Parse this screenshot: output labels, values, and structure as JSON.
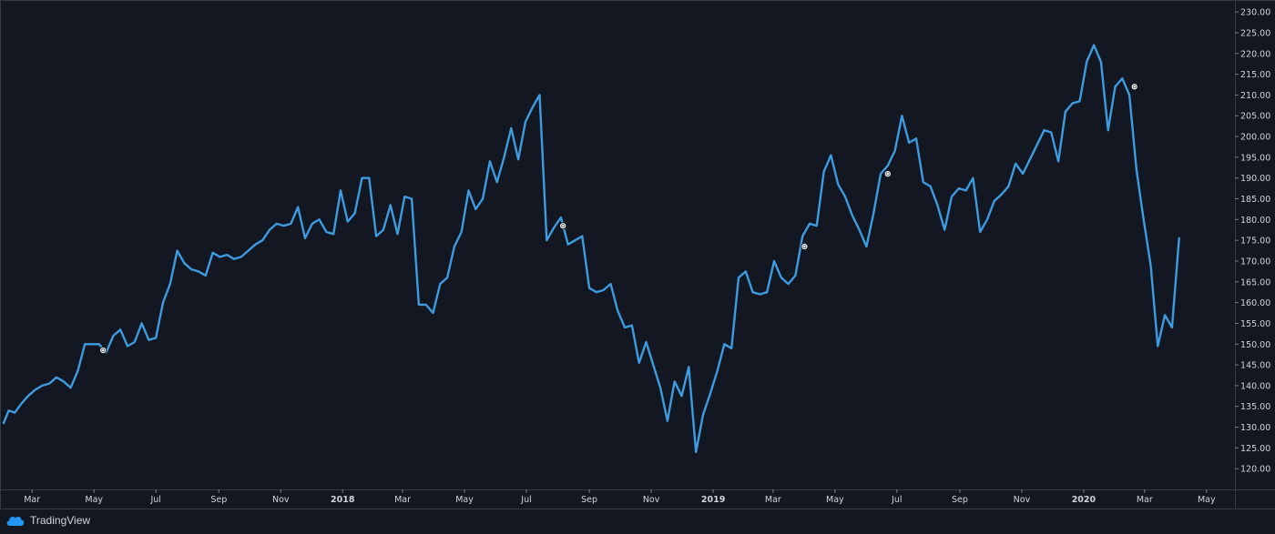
{
  "app": {
    "brand": "TradingView",
    "logo_icon": "tradingview-cloud-icon"
  },
  "colors": {
    "background": "#131722",
    "line": "#3d9be0",
    "text": "#d1d4dc",
    "frame": "#363a45",
    "marker": "#ffffff"
  },
  "chart_data": {
    "type": "line",
    "grid": false,
    "legend": "none",
    "x_start": "2017-02-01",
    "x_end": "2020-05-29",
    "ylim": [
      115,
      232
    ],
    "y_ticks": [
      120,
      125,
      130,
      135,
      140,
      145,
      150,
      155,
      160,
      165,
      170,
      175,
      180,
      185,
      190,
      195,
      200,
      205,
      210,
      215,
      220,
      225,
      230
    ],
    "y_tick_labels": [
      "120.00",
      "125.00",
      "130.00",
      "135.00",
      "140.00",
      "145.00",
      "150.00",
      "155.00",
      "160.00",
      "165.00",
      "170.00",
      "175.00",
      "180.00",
      "185.00",
      "190.00",
      "195.00",
      "200.00",
      "205.00",
      "210.00",
      "215.00",
      "220.00",
      "225.00",
      "230.00"
    ],
    "x_ticks": [
      {
        "date": "2017-03-01",
        "label": "Mar",
        "bold": false
      },
      {
        "date": "2017-05-01",
        "label": "May",
        "bold": false
      },
      {
        "date": "2017-07-01",
        "label": "Jul",
        "bold": false
      },
      {
        "date": "2017-09-01",
        "label": "Sep",
        "bold": false
      },
      {
        "date": "2017-11-01",
        "label": "Nov",
        "bold": false
      },
      {
        "date": "2018-01-01",
        "label": "2018",
        "bold": true
      },
      {
        "date": "2018-03-01",
        "label": "Mar",
        "bold": false
      },
      {
        "date": "2018-05-01",
        "label": "May",
        "bold": false
      },
      {
        "date": "2018-07-01",
        "label": "Jul",
        "bold": false
      },
      {
        "date": "2018-09-01",
        "label": "Sep",
        "bold": false
      },
      {
        "date": "2018-11-01",
        "label": "Nov",
        "bold": false
      },
      {
        "date": "2019-01-01",
        "label": "2019",
        "bold": true
      },
      {
        "date": "2019-03-01",
        "label": "Mar",
        "bold": false
      },
      {
        "date": "2019-05-01",
        "label": "May",
        "bold": false
      },
      {
        "date": "2019-07-01",
        "label": "Jul",
        "bold": false
      },
      {
        "date": "2019-09-01",
        "label": "Sep",
        "bold": false
      },
      {
        "date": "2019-11-01",
        "label": "Nov",
        "bold": false
      },
      {
        "date": "2020-01-01",
        "label": "2020",
        "bold": true
      },
      {
        "date": "2020-03-01",
        "label": "Mar",
        "bold": false
      },
      {
        "date": "2020-05-01",
        "label": "May",
        "bold": false
      }
    ],
    "series": [
      {
        "points": [
          [
            "2017-02-01",
            131
          ],
          [
            "2017-02-06",
            134
          ],
          [
            "2017-02-12",
            133.5
          ],
          [
            "2017-02-18",
            135.5
          ],
          [
            "2017-02-25",
            137.5
          ],
          [
            "2017-03-04",
            139
          ],
          [
            "2017-03-11",
            140
          ],
          [
            "2017-03-18",
            140.5
          ],
          [
            "2017-03-25",
            142
          ],
          [
            "2017-04-01",
            141
          ],
          [
            "2017-04-08",
            139.5
          ],
          [
            "2017-04-15",
            143.5
          ],
          [
            "2017-04-22",
            150
          ],
          [
            "2017-04-29",
            150
          ],
          [
            "2017-05-06",
            150
          ],
          [
            "2017-05-13",
            148
          ],
          [
            "2017-05-20",
            152
          ],
          [
            "2017-05-27",
            153.5
          ],
          [
            "2017-06-03",
            149.5
          ],
          [
            "2017-06-10",
            150.5
          ],
          [
            "2017-06-17",
            155
          ],
          [
            "2017-06-24",
            151
          ],
          [
            "2017-07-01",
            151.5
          ],
          [
            "2017-07-08",
            160
          ],
          [
            "2017-07-15",
            164.5
          ],
          [
            "2017-07-22",
            172.5
          ],
          [
            "2017-07-29",
            169.5
          ],
          [
            "2017-08-05",
            168
          ],
          [
            "2017-08-12",
            167.5
          ],
          [
            "2017-08-19",
            166.5
          ],
          [
            "2017-08-26",
            172
          ],
          [
            "2017-09-02",
            171
          ],
          [
            "2017-09-09",
            171.5
          ],
          [
            "2017-09-16",
            170.5
          ],
          [
            "2017-09-23",
            171
          ],
          [
            "2017-09-30",
            172.5
          ],
          [
            "2017-10-07",
            174
          ],
          [
            "2017-10-14",
            175
          ],
          [
            "2017-10-21",
            177.5
          ],
          [
            "2017-10-28",
            179
          ],
          [
            "2017-11-04",
            178.5
          ],
          [
            "2017-11-11",
            179
          ],
          [
            "2017-11-18",
            183
          ],
          [
            "2017-11-25",
            175.5
          ],
          [
            "2017-12-02",
            179
          ],
          [
            "2017-12-09",
            180
          ],
          [
            "2017-12-16",
            177
          ],
          [
            "2017-12-23",
            176.5
          ],
          [
            "2017-12-30",
            187
          ],
          [
            "2018-01-06",
            179.5
          ],
          [
            "2018-01-13",
            181.5
          ],
          [
            "2018-01-20",
            190
          ],
          [
            "2018-01-27",
            190
          ],
          [
            "2018-02-03",
            176
          ],
          [
            "2018-02-10",
            177.5
          ],
          [
            "2018-02-17",
            183.5
          ],
          [
            "2018-02-24",
            176.5
          ],
          [
            "2018-03-03",
            185.5
          ],
          [
            "2018-03-10",
            185
          ],
          [
            "2018-03-17",
            159.5
          ],
          [
            "2018-03-24",
            159.5
          ],
          [
            "2018-03-31",
            157.5
          ],
          [
            "2018-04-07",
            164.5
          ],
          [
            "2018-04-14",
            166
          ],
          [
            "2018-04-21",
            173.5
          ],
          [
            "2018-04-28",
            177
          ],
          [
            "2018-05-05",
            187
          ],
          [
            "2018-05-12",
            182.5
          ],
          [
            "2018-05-19",
            185
          ],
          [
            "2018-05-26",
            194
          ],
          [
            "2018-06-02",
            189
          ],
          [
            "2018-06-09",
            195
          ],
          [
            "2018-06-16",
            202
          ],
          [
            "2018-06-23",
            194.5
          ],
          [
            "2018-06-30",
            203.5
          ],
          [
            "2018-07-07",
            207
          ],
          [
            "2018-07-14",
            210
          ],
          [
            "2018-07-21",
            175
          ],
          [
            "2018-07-28",
            178
          ],
          [
            "2018-08-04",
            180.5
          ],
          [
            "2018-08-11",
            174
          ],
          [
            "2018-08-18",
            175
          ],
          [
            "2018-08-25",
            176
          ],
          [
            "2018-09-01",
            163.5
          ],
          [
            "2018-09-08",
            162.5
          ],
          [
            "2018-09-15",
            163
          ],
          [
            "2018-09-22",
            164.5
          ],
          [
            "2018-09-29",
            158
          ],
          [
            "2018-10-06",
            154
          ],
          [
            "2018-10-13",
            154.5
          ],
          [
            "2018-10-20",
            145.5
          ],
          [
            "2018-10-27",
            150.5
          ],
          [
            "2018-11-03",
            145
          ],
          [
            "2018-11-10",
            139.5
          ],
          [
            "2018-11-17",
            131.5
          ],
          [
            "2018-11-24",
            141
          ],
          [
            "2018-12-01",
            137.5
          ],
          [
            "2018-12-08",
            144.5
          ],
          [
            "2018-12-15",
            124
          ],
          [
            "2018-12-22",
            133
          ],
          [
            "2018-12-29",
            138
          ],
          [
            "2019-01-05",
            143.5
          ],
          [
            "2019-01-12",
            150
          ],
          [
            "2019-01-19",
            149
          ],
          [
            "2019-01-26",
            166
          ],
          [
            "2019-02-02",
            167.5
          ],
          [
            "2019-02-09",
            162.5
          ],
          [
            "2019-02-16",
            162
          ],
          [
            "2019-02-23",
            162.5
          ],
          [
            "2019-03-02",
            170
          ],
          [
            "2019-03-09",
            166
          ],
          [
            "2019-03-16",
            164.5
          ],
          [
            "2019-03-23",
            166.5
          ],
          [
            "2019-03-30",
            176
          ],
          [
            "2019-04-06",
            179
          ],
          [
            "2019-04-13",
            178.5
          ],
          [
            "2019-04-20",
            191.5
          ],
          [
            "2019-04-27",
            195.5
          ],
          [
            "2019-05-04",
            188.5
          ],
          [
            "2019-05-11",
            185.5
          ],
          [
            "2019-05-18",
            181
          ],
          [
            "2019-05-25",
            177.5
          ],
          [
            "2019-06-01",
            173.5
          ],
          [
            "2019-06-08",
            181.5
          ],
          [
            "2019-06-15",
            191
          ],
          [
            "2019-06-22",
            193
          ],
          [
            "2019-06-29",
            196.5
          ],
          [
            "2019-07-06",
            205
          ],
          [
            "2019-07-13",
            198.5
          ],
          [
            "2019-07-20",
            199.5
          ],
          [
            "2019-07-27",
            189
          ],
          [
            "2019-08-03",
            188
          ],
          [
            "2019-08-10",
            183.5
          ],
          [
            "2019-08-17",
            177.5
          ],
          [
            "2019-08-24",
            185.5
          ],
          [
            "2019-08-31",
            187.5
          ],
          [
            "2019-09-07",
            187
          ],
          [
            "2019-09-14",
            190
          ],
          [
            "2019-09-21",
            177
          ],
          [
            "2019-09-28",
            180
          ],
          [
            "2019-10-05",
            184.5
          ],
          [
            "2019-10-12",
            186
          ],
          [
            "2019-10-19",
            188
          ],
          [
            "2019-10-26",
            193.5
          ],
          [
            "2019-11-02",
            191
          ],
          [
            "2019-11-09",
            194.5
          ],
          [
            "2019-11-16",
            198
          ],
          [
            "2019-11-23",
            201.5
          ],
          [
            "2019-11-30",
            201
          ],
          [
            "2019-12-07",
            194
          ],
          [
            "2019-12-14",
            206
          ],
          [
            "2019-12-21",
            208
          ],
          [
            "2019-12-28",
            208.5
          ],
          [
            "2020-01-04",
            218
          ],
          [
            "2020-01-11",
            222
          ],
          [
            "2020-01-18",
            218
          ],
          [
            "2020-01-25",
            201.5
          ],
          [
            "2020-02-01",
            212
          ],
          [
            "2020-02-08",
            214
          ],
          [
            "2020-02-15",
            210
          ],
          [
            "2020-02-22",
            192
          ],
          [
            "2020-02-29",
            180
          ],
          [
            "2020-03-07",
            169
          ],
          [
            "2020-03-14",
            149.5
          ],
          [
            "2020-03-21",
            157
          ],
          [
            "2020-03-28",
            154
          ],
          [
            "2020-04-04",
            175.5
          ]
        ]
      }
    ],
    "markers": [
      {
        "date": "2017-05-10",
        "value": 148.5
      },
      {
        "date": "2018-08-06",
        "value": 178.5
      },
      {
        "date": "2019-04-01",
        "value": 173.5
      },
      {
        "date": "2019-06-22",
        "value": 191
      },
      {
        "date": "2020-02-20",
        "value": 212
      }
    ]
  }
}
